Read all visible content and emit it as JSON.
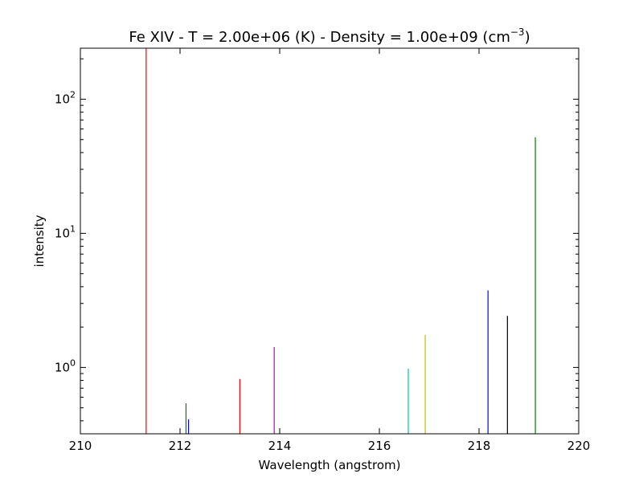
{
  "chart_data": {
    "type": "bar",
    "title_parts": {
      "prefix": "Fe XIV -  T =   2.00e+06 (K) -  Density =   1.00e+09 (cm",
      "exponent": "−3",
      "suffix": ")"
    },
    "xlabel": "Wavelength (angstrom)",
    "ylabel": "intensity",
    "x_scale": "linear",
    "y_scale": "log",
    "xlim": [
      210,
      220
    ],
    "ylim": [
      0.32,
      240
    ],
    "x_ticks": [
      {
        "value": 210,
        "label": "210"
      },
      {
        "value": 212,
        "label": "212"
      },
      {
        "value": 214,
        "label": "214"
      },
      {
        "value": 216,
        "label": "216"
      },
      {
        "value": 218,
        "label": "218"
      },
      {
        "value": 220,
        "label": "220"
      }
    ],
    "y_ticks": [
      {
        "value": 1,
        "base": "10",
        "exp": "0"
      },
      {
        "value": 10,
        "base": "10",
        "exp": "1"
      },
      {
        "value": 100,
        "base": "10",
        "exp": "2"
      }
    ],
    "grid": false,
    "legend": "none",
    "lines": [
      {
        "x": 211.32,
        "y": 240,
        "color": "#ff0000"
      },
      {
        "x": 212.12,
        "y": 0.54,
        "color": "#008000"
      },
      {
        "x": 212.17,
        "y": 0.41,
        "color": "#0000ff"
      },
      {
        "x": 213.2,
        "y": 0.82,
        "color": "#ff0000"
      },
      {
        "x": 213.89,
        "y": 1.42,
        "color": "#bf00bf"
      },
      {
        "x": 216.58,
        "y": 0.98,
        "color": "#00bfbf"
      },
      {
        "x": 216.92,
        "y": 1.75,
        "color": "#bfbf00"
      },
      {
        "x": 218.18,
        "y": 3.75,
        "color": "#0000ff"
      },
      {
        "x": 218.57,
        "y": 2.42,
        "color": "#000000"
      },
      {
        "x": 219.13,
        "y": 52,
        "color": "#008000"
      }
    ]
  }
}
